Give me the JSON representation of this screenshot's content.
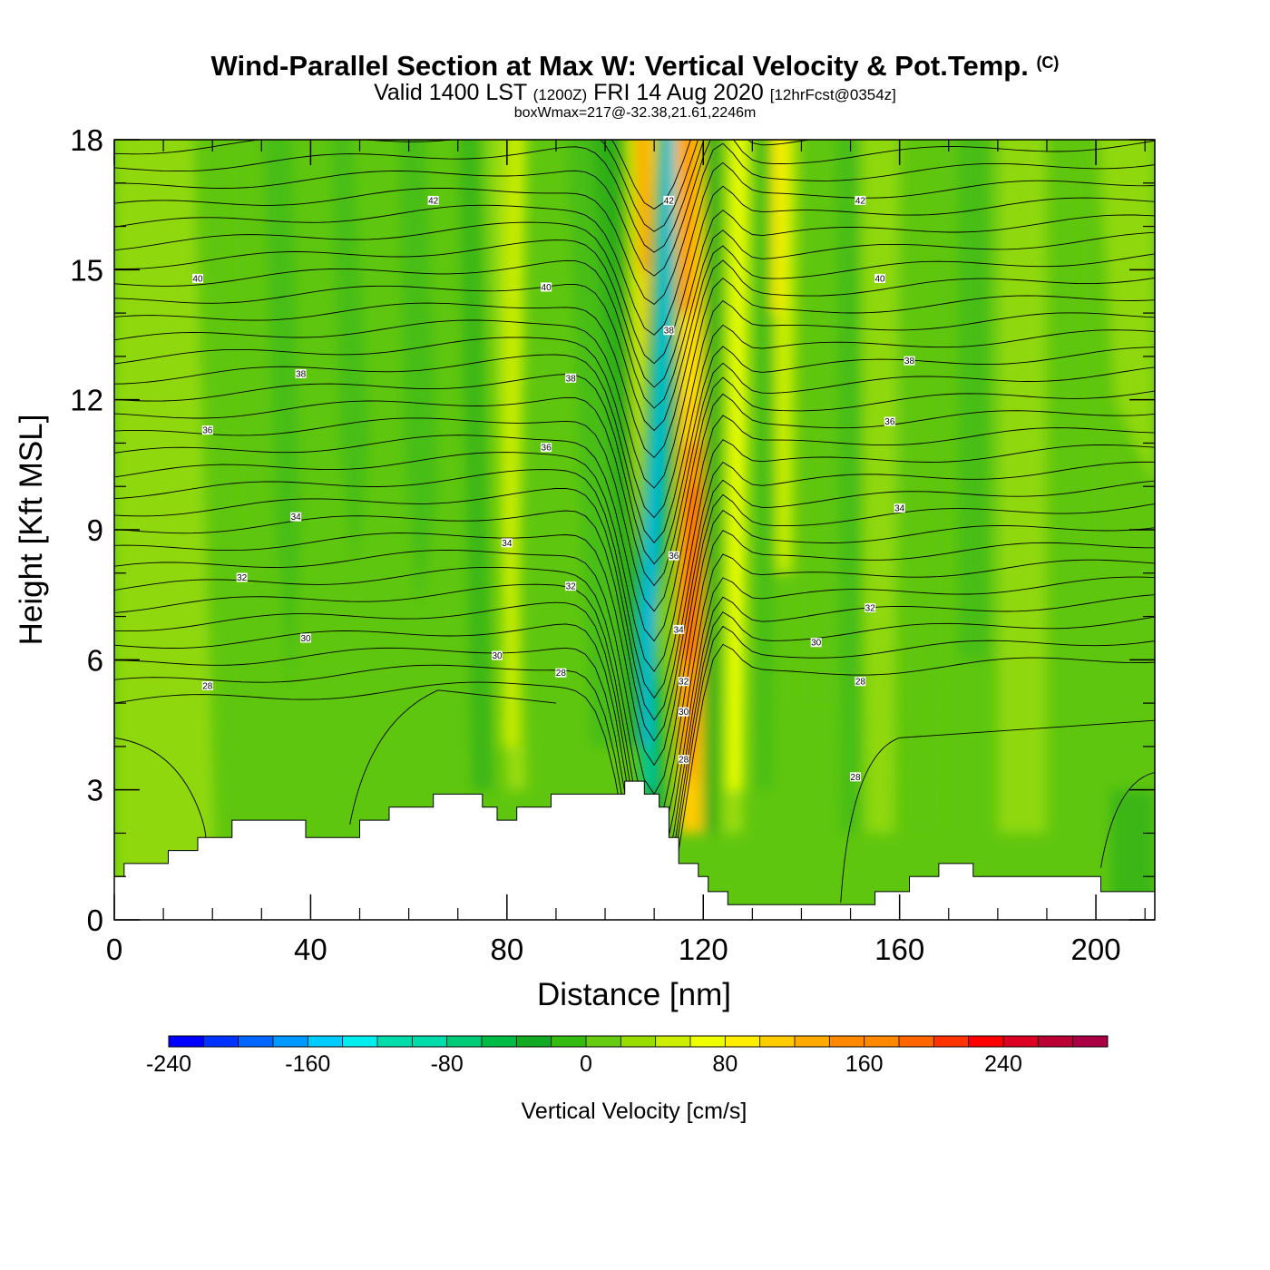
{
  "header": {
    "title": "Wind-Parallel Section at Max W: Vertical Velocity & Pot.Temp.",
    "copyright": "(C)",
    "valid_prefix": "Valid 1400 LST",
    "valid_utc": "(1200Z)",
    "valid_date": "FRI 14 Aug 2020",
    "forecast": "[12hrFcst@0354z]",
    "boxwmax": "boxWmax=217@-32.38,21.61,2246m"
  },
  "chart_data": {
    "type": "heatmap",
    "xlabel": "Distance [nm]",
    "ylabel": "Height [Kft MSL]",
    "xlim": [
      0,
      212
    ],
    "ylim": [
      0,
      18
    ],
    "x_ticks": [
      0,
      40,
      80,
      120,
      160,
      200
    ],
    "y_ticks": [
      0,
      3,
      6,
      9,
      12,
      15,
      18
    ],
    "grid": false,
    "colorbar": {
      "label": "Vertical Velocity [cm/s]",
      "range": [
        -240,
        300
      ],
      "step": 20,
      "tick_labels": [
        -240,
        -160,
        -80,
        0,
        80,
        160,
        240
      ],
      "colors": [
        "#0000ff",
        "#0033ff",
        "#0066ff",
        "#0099ff",
        "#00ccff",
        "#00eeee",
        "#00ddaa",
        "#00cc77",
        "#00bb44",
        "#11aa22",
        "#33bb11",
        "#66cc11",
        "#99dd00",
        "#ccee00",
        "#eeff00",
        "#ffee00",
        "#ffcc00",
        "#ffaa00",
        "#ff8800",
        "#ff6600",
        "#ff3300",
        "#ff0000",
        "#dd0022",
        "#bb0033",
        "#aa0044"
      ]
    },
    "contour_variable": "Potential Temperature",
    "contour_labels": [
      {
        "value": "42",
        "x": 65,
        "y": 16.6
      },
      {
        "value": "42",
        "x": 113,
        "y": 16.6
      },
      {
        "value": "42",
        "x": 152,
        "y": 16.6
      },
      {
        "value": "40",
        "x": 17,
        "y": 14.8
      },
      {
        "value": "40",
        "x": 88,
        "y": 14.6
      },
      {
        "value": "40",
        "x": 156,
        "y": 14.8
      },
      {
        "value": "38",
        "x": 113,
        "y": 13.6
      },
      {
        "value": "38",
        "x": 38,
        "y": 12.6
      },
      {
        "value": "38",
        "x": 93,
        "y": 12.5
      },
      {
        "value": "38",
        "x": 162,
        "y": 12.9
      },
      {
        "value": "36",
        "x": 19,
        "y": 11.3
      },
      {
        "value": "36",
        "x": 88,
        "y": 10.9
      },
      {
        "value": "36",
        "x": 158,
        "y": 11.5
      },
      {
        "value": "36",
        "x": 114,
        "y": 8.4
      },
      {
        "value": "34",
        "x": 37,
        "y": 9.3
      },
      {
        "value": "34",
        "x": 80,
        "y": 8.7
      },
      {
        "value": "34",
        "x": 160,
        "y": 9.5
      },
      {
        "value": "34",
        "x": 115,
        "y": 6.7
      },
      {
        "value": "32",
        "x": 26,
        "y": 7.9
      },
      {
        "value": "32",
        "x": 93,
        "y": 7.7
      },
      {
        "value": "32",
        "x": 154,
        "y": 7.2
      },
      {
        "value": "32",
        "x": 116,
        "y": 5.5
      },
      {
        "value": "30",
        "x": 39,
        "y": 6.5
      },
      {
        "value": "30",
        "x": 78,
        "y": 6.1
      },
      {
        "value": "30",
        "x": 143,
        "y": 6.4
      },
      {
        "value": "30",
        "x": 116,
        "y": 4.8
      },
      {
        "value": "28",
        "x": 19,
        "y": 5.4
      },
      {
        "value": "28",
        "x": 91,
        "y": 5.7
      },
      {
        "value": "28",
        "x": 152,
        "y": 5.5
      },
      {
        "value": "28",
        "x": 116,
        "y": 3.7
      },
      {
        "value": "28",
        "x": 151,
        "y": 3.3
      }
    ],
    "terrain_kft": [
      [
        0,
        1.0
      ],
      [
        2,
        1.0
      ],
      [
        2,
        1.3
      ],
      [
        11,
        1.3
      ],
      [
        11,
        1.6
      ],
      [
        17,
        1.6
      ],
      [
        17,
        1.9
      ],
      [
        24,
        1.9
      ],
      [
        24,
        2.3
      ],
      [
        39,
        2.3
      ],
      [
        39,
        1.9
      ],
      [
        50,
        1.9
      ],
      [
        50,
        2.3
      ],
      [
        56,
        2.3
      ],
      [
        56,
        2.6
      ],
      [
        65,
        2.6
      ],
      [
        65,
        2.9
      ],
      [
        75,
        2.9
      ],
      [
        75,
        2.6
      ],
      [
        78,
        2.6
      ],
      [
        78,
        2.3
      ],
      [
        82,
        2.3
      ],
      [
        82,
        2.6
      ],
      [
        89,
        2.6
      ],
      [
        89,
        2.9
      ],
      [
        104,
        2.9
      ],
      [
        104,
        3.2
      ],
      [
        108,
        3.2
      ],
      [
        108,
        2.9
      ],
      [
        111,
        2.9
      ],
      [
        111,
        2.6
      ],
      [
        113,
        2.6
      ],
      [
        113,
        1.9
      ],
      [
        115,
        1.9
      ],
      [
        115,
        1.3
      ],
      [
        119,
        1.3
      ],
      [
        119,
        1.0
      ],
      [
        121,
        1.0
      ],
      [
        121,
        0.65
      ],
      [
        125,
        0.65
      ],
      [
        125,
        0.35
      ],
      [
        155,
        0.35
      ],
      [
        155,
        0.65
      ],
      [
        162,
        0.65
      ],
      [
        162,
        1.0
      ],
      [
        168,
        1.0
      ],
      [
        168,
        1.3
      ],
      [
        175,
        1.3
      ],
      [
        175,
        1.0
      ],
      [
        201,
        1.0
      ],
      [
        201,
        0.65
      ],
      [
        212,
        0.65
      ]
    ]
  }
}
